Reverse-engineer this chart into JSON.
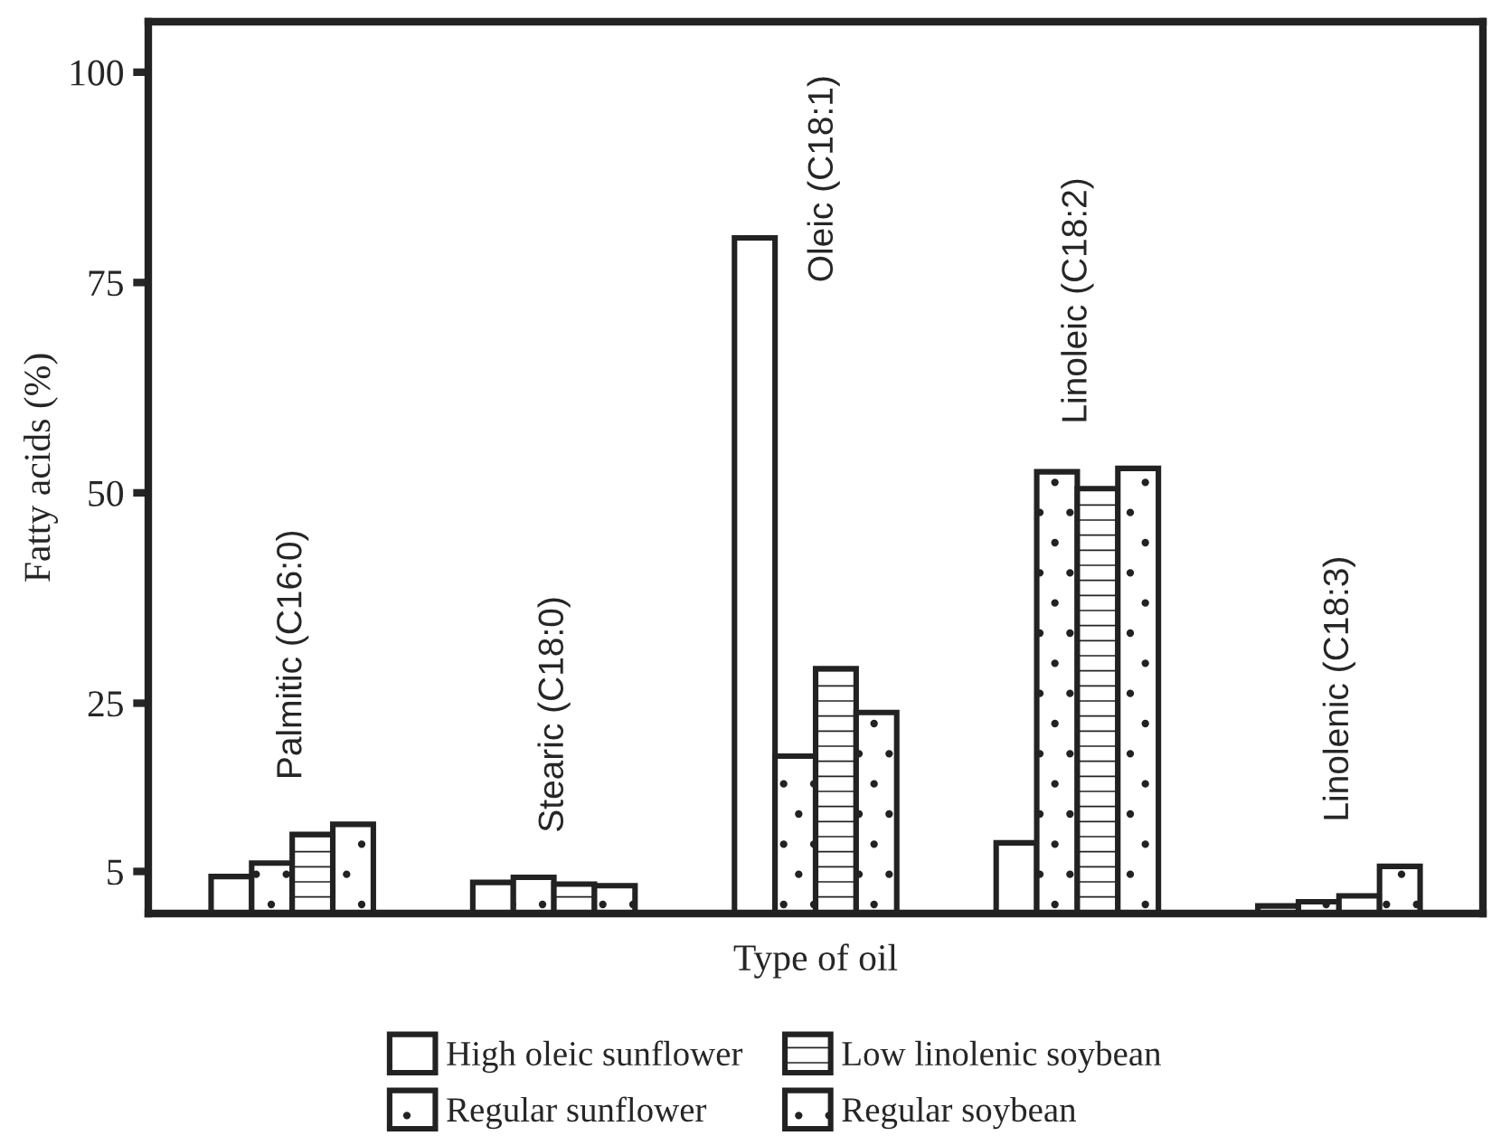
{
  "chart_data": {
    "type": "bar",
    "categories": [
      "Palmitic (C16:0)",
      "Stearic (C18:0)",
      "Oleic (C18:1)",
      "Linoleic (C18:2)",
      "Linolenic (C18:3)"
    ],
    "series": [
      {
        "name": "High oleic sunflower",
        "color": "#222222",
        "values": [
          4.4,
          3.7,
          80.3,
          8.4,
          0.9
        ]
      },
      {
        "name": "Regular sunflower",
        "color": "#222222",
        "values": [
          6.0,
          4.3,
          18.7,
          52.5,
          1.4
        ]
      },
      {
        "name": "Low linolenic soybean",
        "color": "#222222",
        "values": [
          9.4,
          3.5,
          29.1,
          50.5,
          2.1
        ]
      },
      {
        "name": "Regular soybean",
        "color": "#222222",
        "values": [
          10.6,
          3.3,
          23.9,
          52.9,
          5.6
        ]
      }
    ],
    "xlabel": "Type of oil",
    "ylabel": "Fatty acids (%)",
    "ylim": [
      0,
      106
    ],
    "yticks": [
      5,
      25,
      50,
      75,
      100
    ],
    "grid": false,
    "legend": "bottom"
  }
}
